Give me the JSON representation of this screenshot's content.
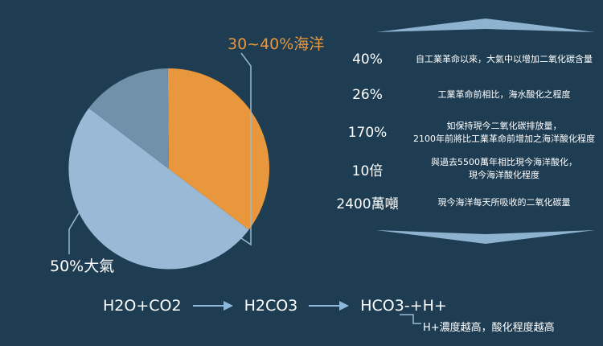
{
  "colors": {
    "background": "#1e3d52",
    "ocean": "#e8973c",
    "atmosphere": "#99b9d6",
    "other": "#7190aa",
    "leader_line": "#99b9d6",
    "chevron": "#8eb3d0"
  },
  "pie": {
    "slices": [
      {
        "key": "ocean",
        "fraction": 0.355
      },
      {
        "key": "atmosphere",
        "fraction": 0.5
      },
      {
        "key": "other",
        "fraction": 0.145
      }
    ]
  },
  "labels": {
    "ocean": "30~40%海洋",
    "atmosphere": "50%大氣"
  },
  "stats": [
    {
      "value": "40%",
      "desc": "自工業革命以來，大氣中以增加二氧化碳含量"
    },
    {
      "value": "26%",
      "desc": "工業革命前相比，海水酸化之程度"
    },
    {
      "value": "170%",
      "desc": "如保持現今二氧化碳排放量，\n2100年前將比工業革命前增加之海洋酸化程度"
    },
    {
      "value": "10倍",
      "desc": "與過去5500萬年相比現今海洋酸化，\n現今海洋酸化程度"
    },
    {
      "value": "2400萬噸",
      "desc": "現今海洋每天所吸收的二氧化碳量"
    }
  ],
  "equation": {
    "terms": [
      "H2O+CO2",
      "H2CO3",
      "HCO3-+H+"
    ]
  },
  "note": "H+濃度越高，酸化程度越高"
}
